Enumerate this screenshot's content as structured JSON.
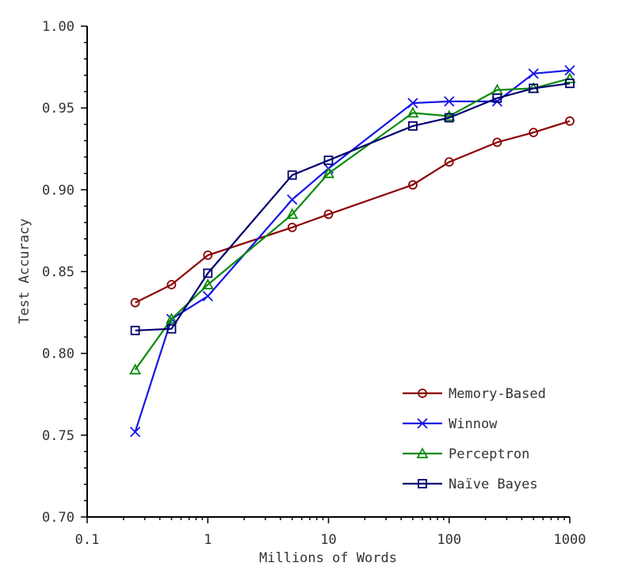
{
  "chart_data": {
    "type": "line",
    "xlabel": "Millions of Words",
    "ylabel": "Test Accuracy",
    "xscale": "log",
    "xlim": [
      0.1,
      1000
    ],
    "ylim": [
      0.7,
      1.0
    ],
    "x_ticks": [
      0.1,
      1,
      10,
      100,
      1000
    ],
    "x_tick_labels": [
      "0.1",
      "1",
      "10",
      "100",
      "1000"
    ],
    "y_ticks": [
      0.7,
      0.75,
      0.8,
      0.85,
      0.9,
      0.95,
      1.0
    ],
    "y_tick_labels": [
      "0.70",
      "0.75",
      "0.80",
      "0.85",
      "0.90",
      "0.95",
      "1.00"
    ],
    "grid": false,
    "legend_position": "bottom-right",
    "x": [
      0.25,
      0.5,
      1,
      5,
      10,
      50,
      100,
      250,
      500,
      1000
    ],
    "series": [
      {
        "name": "Memory-Based",
        "color": "#8b0000",
        "marker": "circle",
        "values": [
          0.831,
          0.842,
          0.86,
          0.877,
          0.885,
          0.903,
          0.917,
          0.929,
          0.935,
          0.942
        ]
      },
      {
        "name": "Winnow",
        "color": "#1515e6",
        "marker": "x",
        "values": [
          0.752,
          0.821,
          0.835,
          0.894,
          0.913,
          0.953,
          0.954,
          0.954,
          0.971,
          0.973
        ]
      },
      {
        "name": "Perceptron",
        "color": "#0a8a0a",
        "marker": "triangle",
        "values": [
          0.79,
          0.821,
          0.842,
          0.885,
          0.91,
          0.947,
          0.945,
          0.961,
          0.962,
          0.968
        ]
      },
      {
        "name": "Naïve Bayes",
        "color": "#00006e",
        "marker": "square",
        "values": [
          0.814,
          0.815,
          0.849,
          0.909,
          0.918,
          0.939,
          0.944,
          0.956,
          0.962,
          0.965
        ]
      }
    ]
  }
}
